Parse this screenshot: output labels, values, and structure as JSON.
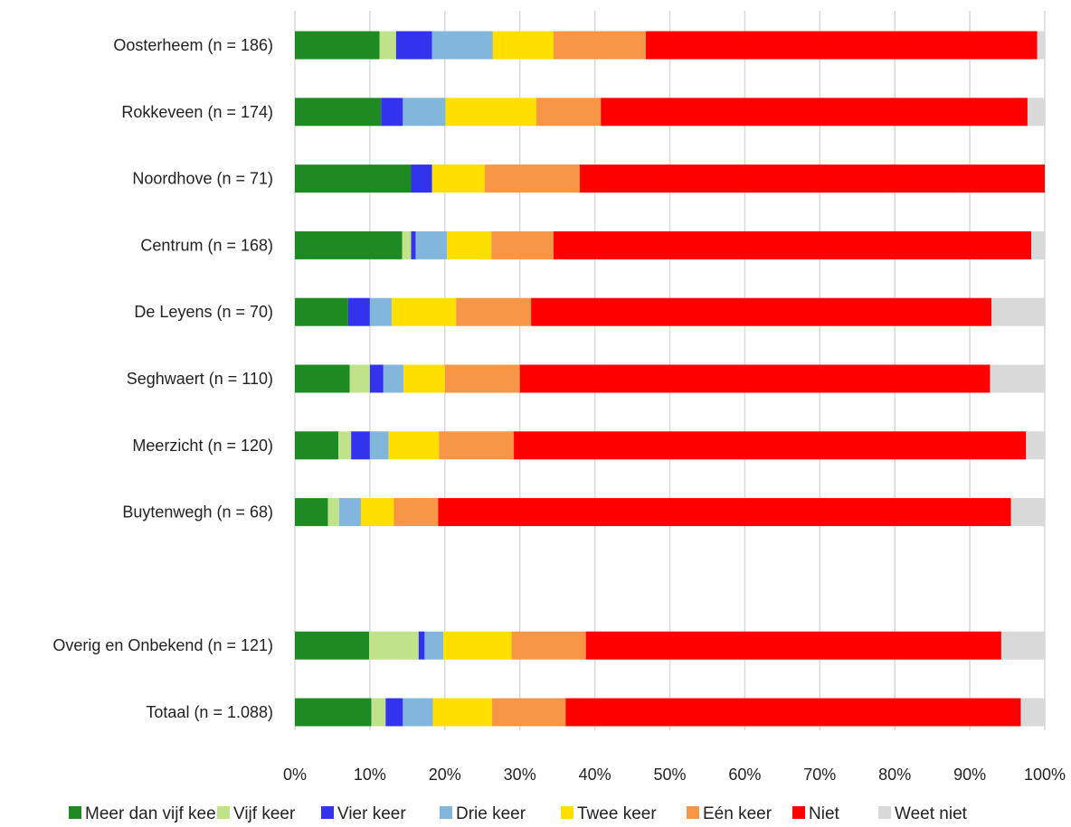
{
  "chart_data": {
    "type": "bar",
    "orientation": "horizontal",
    "stacked": true,
    "categories": [
      "Oosterheem (n = 186)",
      "Rokkeveen (n = 174)",
      "Noordhove (n = 71)",
      "Centrum (n = 168)",
      "De Leyens (n = 70)",
      "Seghwaert (n = 110)",
      "Meerzicht (n = 120)",
      "Buytenwegh (n = 68)",
      "",
      "Overig en Onbekend (n = 121)",
      "Totaal (n = 1.088)"
    ],
    "series": [
      {
        "name": "Meer dan vijf keer",
        "color": "#1e8b22",
        "values": [
          11.3,
          11.5,
          15.5,
          14.3,
          7.1,
          7.3,
          5.8,
          4.4,
          null,
          9.9,
          10.2
        ]
      },
      {
        "name": "Vijf keer",
        "color": "#bfe28a",
        "values": [
          2.2,
          0,
          0,
          1.2,
          0,
          2.7,
          1.7,
          1.5,
          null,
          6.6,
          1.9
        ]
      },
      {
        "name": "Vier keer",
        "color": "#3333ee",
        "values": [
          4.8,
          2.9,
          2.8,
          0.6,
          2.9,
          1.8,
          2.5,
          0,
          null,
          0.8,
          2.3
        ]
      },
      {
        "name": "Drie keer",
        "color": "#82b6dc",
        "values": [
          8.1,
          5.7,
          0,
          4.2,
          2.9,
          2.7,
          2.5,
          2.9,
          null,
          2.5,
          4.0
        ]
      },
      {
        "name": "Twee keer",
        "color": "#ffdf00",
        "values": [
          8.1,
          12.1,
          7.0,
          5.9,
          8.6,
          5.5,
          6.7,
          4.4,
          null,
          9.1,
          7.9
        ]
      },
      {
        "name": "Eén keer",
        "color": "#f79646",
        "values": [
          12.3,
          8.6,
          12.7,
          8.3,
          10.0,
          10.0,
          10.0,
          5.9,
          null,
          9.9,
          9.8
        ]
      },
      {
        "name": "Niet",
        "color": "#ff0000",
        "values": [
          52.2,
          56.9,
          62.0,
          63.7,
          61.4,
          62.7,
          68.3,
          76.4,
          null,
          55.4,
          60.7
        ]
      },
      {
        "name": "Weet niet",
        "color": "#d9d9d9",
        "values": [
          1.0,
          2.3,
          0,
          1.8,
          7.1,
          7.3,
          2.5,
          4.5,
          null,
          5.8,
          3.2
        ]
      }
    ],
    "xlim": [
      0,
      100
    ],
    "xticks": [
      "0%",
      "10%",
      "20%",
      "30%",
      "40%",
      "50%",
      "60%",
      "70%",
      "80%",
      "90%",
      "100%"
    ],
    "grid": "vertical",
    "legend": "bottom",
    "title": "",
    "xlabel": "",
    "ylabel": ""
  }
}
